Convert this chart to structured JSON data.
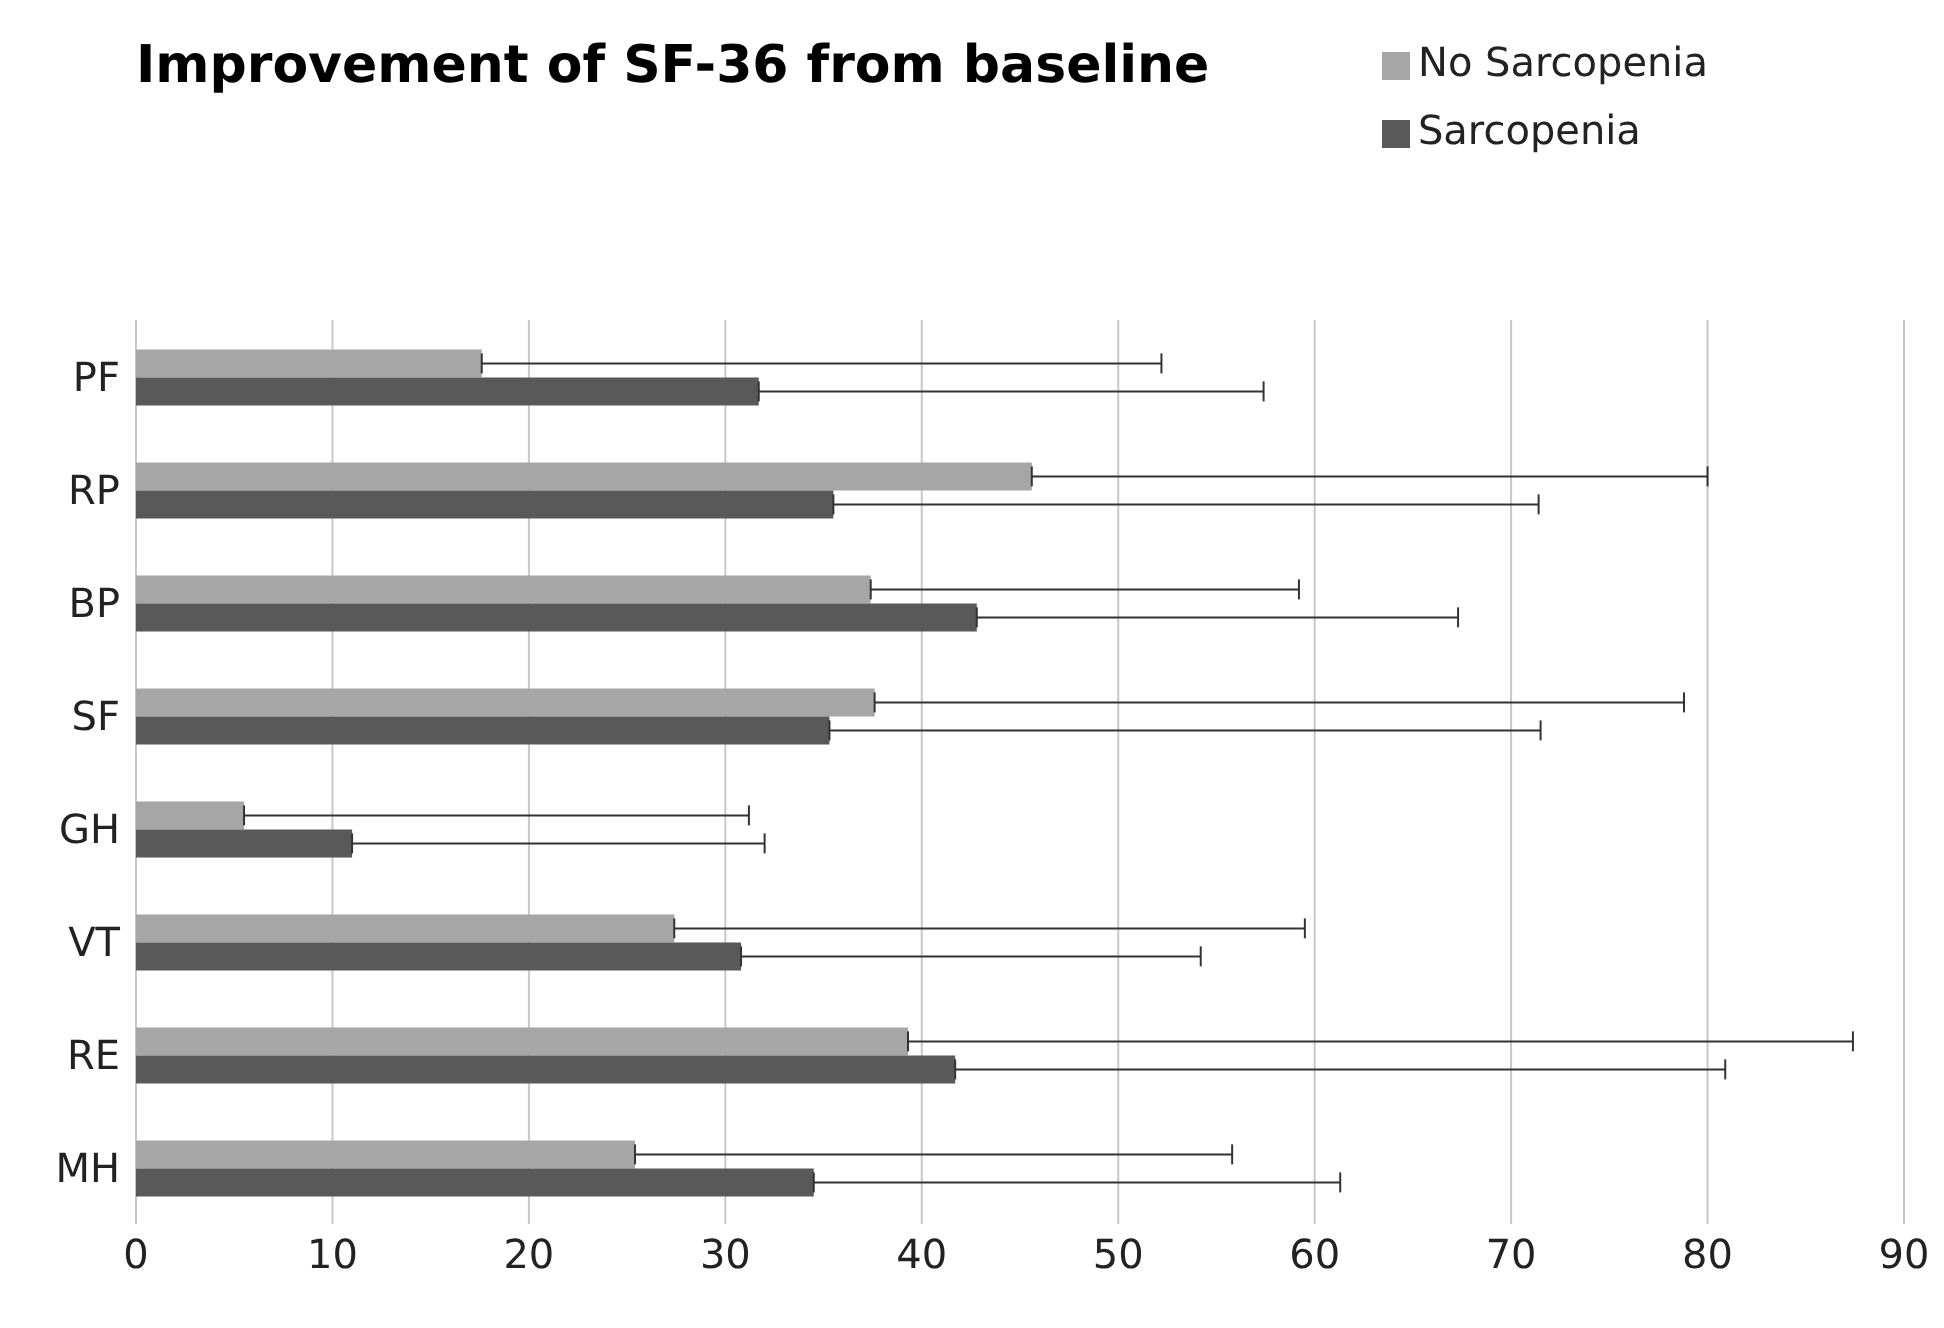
{
  "chart_data": {
    "type": "bar",
    "orientation": "horizontal",
    "title": "Improvement of SF-36 from baseline",
    "categories": [
      "PF",
      "RP",
      "BP",
      "SF",
      "GH",
      "VT",
      "RE",
      "MH"
    ],
    "series": [
      {
        "name": "No Sarcopenia",
        "color": "#a6a6a6",
        "values": [
          17.6,
          45.6,
          37.4,
          37.6,
          5.5,
          27.4,
          39.3,
          25.4
        ],
        "errors": [
          [
            17.6,
            52.2
          ],
          [
            45.6,
            80
          ],
          [
            37.4,
            59.2
          ],
          [
            37.6,
            78.8
          ],
          [
            5.5,
            31.2
          ],
          [
            27.4,
            59.5
          ],
          [
            39.3,
            87.4
          ],
          [
            25.4,
            55.8
          ]
        ]
      },
      {
        "name": "Sarcopenia",
        "color": "#595959",
        "values": [
          31.7,
          35.5,
          42.8,
          35.3,
          11,
          30.8,
          41.7,
          34.5
        ],
        "errors": [
          [
            31.7,
            57.4
          ],
          [
            35.5,
            71.4
          ],
          [
            42.8,
            67.3
          ],
          [
            35.3,
            71.5
          ],
          [
            11,
            32
          ],
          [
            30.8,
            54.2
          ],
          [
            41.7,
            80.9
          ],
          [
            34.5,
            61.3
          ]
        ]
      }
    ],
    "xlim": [
      0,
      90
    ],
    "xticks": [
      0,
      10,
      20,
      30,
      40,
      50,
      60,
      70,
      80,
      90
    ],
    "grid": "x",
    "legend": "top right"
  }
}
